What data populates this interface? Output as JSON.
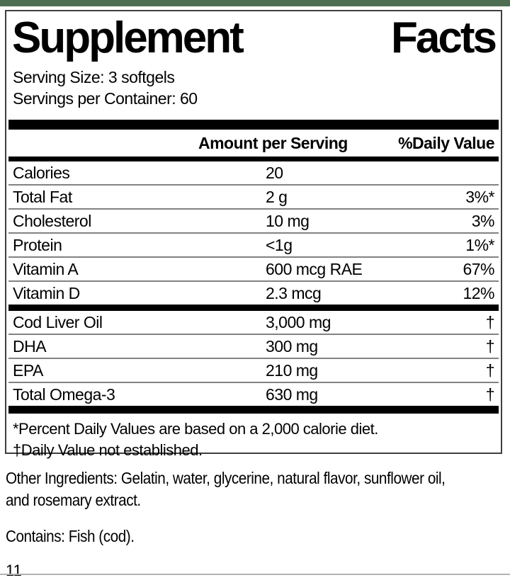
{
  "page": {
    "accent_green": "#4d6e50",
    "page_number": "11"
  },
  "label": {
    "title_word_1": "Supplement",
    "title_word_2": "Facts",
    "serving_size": "Serving Size: 3 softgels",
    "servings_per_container": "Servings per Container: 60",
    "header": {
      "amount": "Amount per Serving",
      "daily_value": "%Daily Value"
    },
    "main_rows": [
      {
        "name": "Calories",
        "amount": "20",
        "dv": ""
      },
      {
        "name": "Total Fat",
        "amount": "2 g",
        "dv": "3%*"
      },
      {
        "name": "Cholesterol",
        "amount": "10 mg",
        "dv": "3%"
      },
      {
        "name": "Protein",
        "amount": "<1g",
        "dv": "1%*"
      },
      {
        "name": "Vitamin A",
        "amount": "600 mcg RAE",
        "dv": "67%"
      },
      {
        "name": "Vitamin D",
        "amount": "2.3 mcg",
        "dv": "12%"
      }
    ],
    "supplement_rows": [
      {
        "name": "Cod Liver Oil",
        "amount": "3,000 mg",
        "dv": "†"
      },
      {
        "name": "DHA",
        "amount": "300 mg",
        "dv": "†"
      },
      {
        "name": "EPA",
        "amount": "210 mg",
        "dv": "†"
      },
      {
        "name": "Total Omega-3",
        "amount": "630 mg",
        "dv": "†"
      }
    ],
    "footnotes": [
      "*Percent Daily Values are based on a 2,000 calorie diet.",
      "†Daily Value not established."
    ]
  },
  "footer": {
    "other_ingredients_line1": "Other Ingredients: Gelatin, water, glycerine, natural flavor, sunflower oil,",
    "other_ingredients_line2": "and rosemary extract.",
    "contains": "Contains: Fish (cod)."
  }
}
